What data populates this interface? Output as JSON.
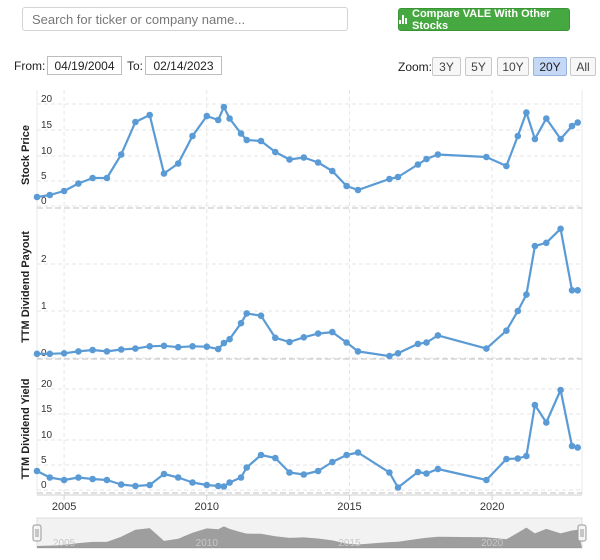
{
  "search": {
    "placeholder": "Search for ticker or company name..."
  },
  "compare_button": {
    "label": "Compare VALE With Other Stocks"
  },
  "date_range": {
    "from_label": "From:",
    "from_value": "04/19/2004",
    "to_label": "To:",
    "to_value": "02/14/2023"
  },
  "zoom": {
    "label": "Zoom:",
    "options": [
      "3Y",
      "5Y",
      "10Y",
      "20Y",
      "All"
    ],
    "active": "20Y"
  },
  "colors": {
    "series": "#5b9bd5",
    "grid": "#e6e6e6",
    "navigator_fill": "#5a5a5a"
  },
  "chart_data": {
    "type": "line",
    "x_range": [
      2004.05,
      2023.15
    ],
    "x_ticks": [
      "2005",
      "2010",
      "2015",
      "2020"
    ],
    "panels": [
      {
        "ylabel": "Stock Price",
        "ylim": [
          0,
          22
        ],
        "yticks": [
          "0",
          "5",
          "10",
          "15",
          "20"
        ],
        "points": [
          [
            2004.05,
            1.8
          ],
          [
            2004.5,
            2.2
          ],
          [
            2005,
            3.0
          ],
          [
            2005.5,
            4.5
          ],
          [
            2006,
            5.6
          ],
          [
            2006.5,
            5.6
          ],
          [
            2007,
            10.3
          ],
          [
            2007.5,
            16.8
          ],
          [
            2008,
            18.2
          ],
          [
            2008.5,
            6.5
          ],
          [
            2009,
            8.5
          ],
          [
            2009.5,
            14.0
          ],
          [
            2010,
            18.0
          ],
          [
            2010.4,
            17.2
          ],
          [
            2010.6,
            19.8
          ],
          [
            2010.8,
            17.5
          ],
          [
            2011.2,
            14.5
          ],
          [
            2011.4,
            13.2
          ],
          [
            2011.9,
            13.0
          ],
          [
            2012.4,
            10.8
          ],
          [
            2012.9,
            9.3
          ],
          [
            2013.4,
            9.7
          ],
          [
            2013.9,
            8.7
          ],
          [
            2014.4,
            7.0
          ],
          [
            2014.9,
            4.0
          ],
          [
            2015.3,
            3.2
          ],
          [
            2016.4,
            5.4
          ],
          [
            2016.7,
            5.8
          ],
          [
            2017.4,
            8.3
          ],
          [
            2017.7,
            9.4
          ],
          [
            2018.1,
            10.3
          ],
          [
            2019.8,
            9.8
          ],
          [
            2020.5,
            8.0
          ],
          [
            2020.9,
            14.0
          ],
          [
            2021.2,
            18.7
          ],
          [
            2021.5,
            13.4
          ],
          [
            2021.9,
            17.5
          ],
          [
            2022.4,
            13.4
          ],
          [
            2022.8,
            16.0
          ],
          [
            2023.0,
            16.7
          ]
        ]
      },
      {
        "ylabel": "TTM Dividend Payout",
        "ylim": [
          0,
          2.9
        ],
        "yticks": [
          "0",
          "1",
          "2"
        ],
        "points": [
          [
            2004.05,
            0.09
          ],
          [
            2004.5,
            0.09
          ],
          [
            2005,
            0.1
          ],
          [
            2005.5,
            0.14
          ],
          [
            2006,
            0.17
          ],
          [
            2006.5,
            0.14
          ],
          [
            2007,
            0.18
          ],
          [
            2007.5,
            0.2
          ],
          [
            2008,
            0.25
          ],
          [
            2008.5,
            0.26
          ],
          [
            2009,
            0.23
          ],
          [
            2009.5,
            0.25
          ],
          [
            2010,
            0.24
          ],
          [
            2010.4,
            0.19
          ],
          [
            2010.6,
            0.32
          ],
          [
            2010.8,
            0.4
          ],
          [
            2011.2,
            0.74
          ],
          [
            2011.4,
            0.95
          ],
          [
            2011.9,
            0.9
          ],
          [
            2012.4,
            0.43
          ],
          [
            2012.9,
            0.34
          ],
          [
            2013.4,
            0.44
          ],
          [
            2013.9,
            0.52
          ],
          [
            2014.4,
            0.55
          ],
          [
            2014.9,
            0.33
          ],
          [
            2015.3,
            0.14
          ],
          [
            2016.4,
            0.04
          ],
          [
            2016.7,
            0.1
          ],
          [
            2017.4,
            0.3
          ],
          [
            2017.7,
            0.33
          ],
          [
            2018.1,
            0.48
          ],
          [
            2019.8,
            0.2
          ],
          [
            2020.5,
            0.58
          ],
          [
            2020.9,
            1.0
          ],
          [
            2021.2,
            1.35
          ],
          [
            2021.5,
            2.38
          ],
          [
            2021.9,
            2.45
          ],
          [
            2022.4,
            2.75
          ],
          [
            2022.8,
            1.44
          ],
          [
            2023.0,
            1.44
          ]
        ]
      },
      {
        "ylabel": "TTM Dividend Yield",
        "ylim": [
          0,
          22
        ],
        "yticks": [
          "0",
          "5",
          "10",
          "15",
          "20"
        ],
        "points": [
          [
            2004.05,
            3.8
          ],
          [
            2004.5,
            2.5
          ],
          [
            2005,
            2.0
          ],
          [
            2005.5,
            2.5
          ],
          [
            2006,
            2.2
          ],
          [
            2006.5,
            2.0
          ],
          [
            2007,
            1.1
          ],
          [
            2007.5,
            0.8
          ],
          [
            2008,
            1.0
          ],
          [
            2008.5,
            3.2
          ],
          [
            2009,
            2.5
          ],
          [
            2009.5,
            1.5
          ],
          [
            2010,
            1.0
          ],
          [
            2010.4,
            0.8
          ],
          [
            2010.6,
            0.7
          ],
          [
            2010.8,
            1.5
          ],
          [
            2011.2,
            2.5
          ],
          [
            2011.4,
            4.5
          ],
          [
            2011.9,
            7.0
          ],
          [
            2012.4,
            6.4
          ],
          [
            2012.9,
            3.5
          ],
          [
            2013.4,
            3.1
          ],
          [
            2013.9,
            3.8
          ],
          [
            2014.4,
            5.6
          ],
          [
            2014.9,
            7.0
          ],
          [
            2015.3,
            7.5
          ],
          [
            2016.4,
            3.5
          ],
          [
            2016.7,
            0.5
          ],
          [
            2017.4,
            3.6
          ],
          [
            2017.7,
            3.3
          ],
          [
            2018.1,
            4.2
          ],
          [
            2019.8,
            2.0
          ],
          [
            2020.5,
            6.2
          ],
          [
            2020.9,
            6.3
          ],
          [
            2021.2,
            6.8
          ],
          [
            2021.5,
            17.0
          ],
          [
            2021.9,
            13.5
          ],
          [
            2022.4,
            20.0
          ],
          [
            2022.8,
            8.8
          ],
          [
            2023.0,
            8.5
          ]
        ]
      }
    ],
    "grid": true
  }
}
